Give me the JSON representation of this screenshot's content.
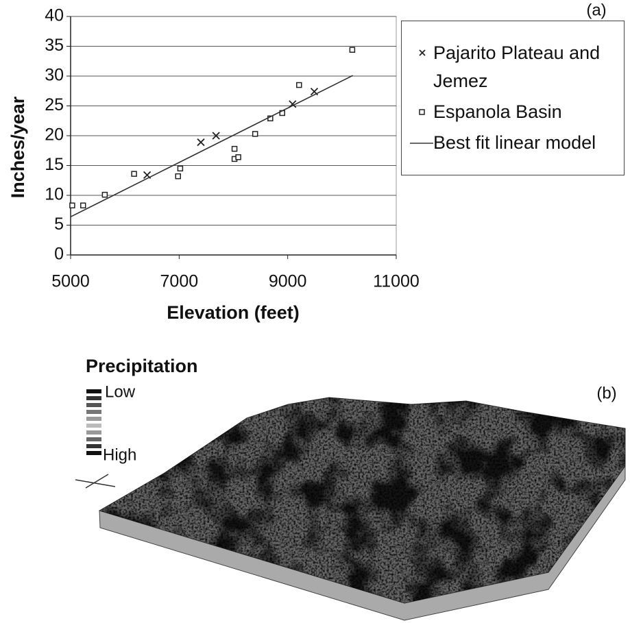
{
  "chart_data": {
    "type": "scatter",
    "annotation": "(a)",
    "x_label": "Elevation (feet)",
    "y_label": "Inches/year",
    "xlim": [
      5000,
      11000
    ],
    "xticks": [
      5000,
      7000,
      9000,
      11000
    ],
    "ylim": [
      0,
      40
    ],
    "yticks": [
      0,
      5,
      10,
      15,
      20,
      25,
      30,
      35,
      40
    ],
    "grid": true,
    "series": [
      {
        "name": "Pajarito Plateau and Jemez",
        "marker": "x",
        "color": "#222",
        "x": [
          6410,
          7400,
          7680,
          9090,
          9490
        ],
        "values": [
          13.4,
          18.9,
          20.0,
          25.3,
          27.4
        ]
      },
      {
        "name": "Espanola Basin",
        "marker": "square",
        "color": "#222",
        "x": [
          5030,
          5230,
          5630,
          6170,
          6980,
          7020,
          8020,
          8020,
          8090,
          8400,
          8680,
          8900,
          9210,
          10190
        ],
        "values": [
          8.3,
          8.3,
          10.1,
          13.6,
          13.2,
          14.5,
          17.8,
          16.1,
          16.4,
          20.3,
          22.9,
          23.8,
          28.5,
          34.4
        ]
      },
      {
        "name": "Best fit linear model",
        "marker": "line",
        "color": "#333",
        "x": [
          5000,
          10200
        ],
        "values": [
          6.4,
          30.1
        ]
      }
    ]
  },
  "map_panel": {
    "label": "(b)",
    "legend_title": "Precipitation",
    "low": "Low",
    "high": "High"
  }
}
